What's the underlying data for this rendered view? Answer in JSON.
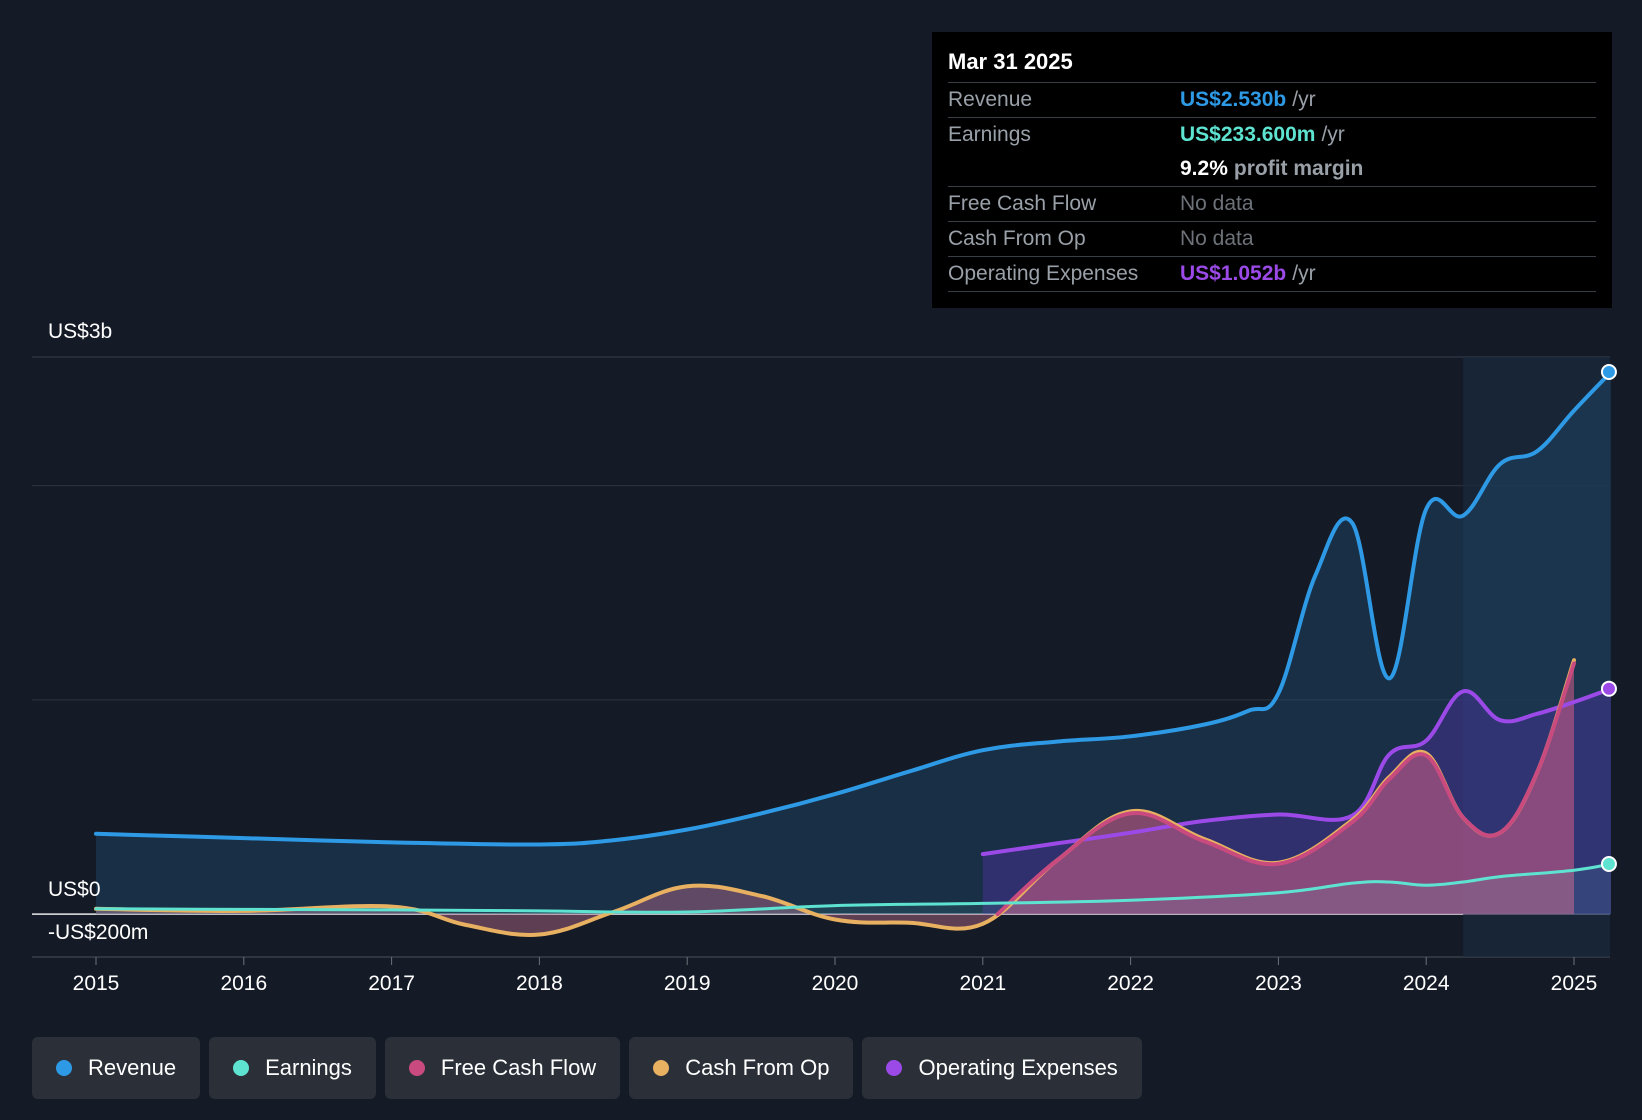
{
  "tooltip": {
    "date": "Mar 31 2025",
    "revenue_label": "Revenue",
    "revenue_value": "US$2.530b",
    "earnings_label": "Earnings",
    "earnings_value": "US$233.600m",
    "margin_value": "9.2%",
    "margin_label": "profit margin",
    "fcf_label": "Free Cash Flow",
    "fcf_value": "No data",
    "cfo_label": "Cash From Op",
    "cfo_value": "No data",
    "opex_label": "Operating Expenses",
    "opex_value": "US$1.052b",
    "per_year": "/yr"
  },
  "colors": {
    "revenue": "#2e9ae6",
    "earnings": "#5ee3d0",
    "fcf": "#c94a7e",
    "cfo": "#e8b061",
    "opex": "#9b4ae8",
    "background": "#151b26"
  },
  "legend": {
    "revenue": "Revenue",
    "earnings": "Earnings",
    "fcf": "Free Cash Flow",
    "cfo": "Cash From Op",
    "opex": "Operating Expenses"
  },
  "chart_data": {
    "type": "area",
    "title": "",
    "y_unit": "US$ millions",
    "ylim": [
      -200,
      2600
    ],
    "y_tick_labels": [
      {
        "value": 2600,
        "label": "US$3b"
      },
      {
        "value": 0,
        "label": "US$0"
      },
      {
        "value": -200,
        "label": "-US$200m"
      }
    ],
    "x_tick_labels": [
      "2015",
      "2016",
      "2017",
      "2018",
      "2019",
      "2020",
      "2021",
      "2022",
      "2023",
      "2024",
      "2025"
    ],
    "xlim": [
      2014.58,
      2025.25
    ],
    "highlight_range": [
      2024.25,
      2025.25
    ],
    "series": [
      {
        "name": "Revenue",
        "key": "revenue",
        "x": [
          2015,
          2016,
          2017,
          2018,
          2018.5,
          2019,
          2019.5,
          2020,
          2020.5,
          2021,
          2021.5,
          2022,
          2022.5,
          2022.8,
          2023,
          2023.25,
          2023.5,
          2023.75,
          2024,
          2024.25,
          2024.5,
          2024.75,
          2025,
          2025.25
        ],
        "y": [
          375,
          355,
          335,
          325,
          345,
          395,
          470,
          560,
          665,
          765,
          805,
          830,
          885,
          950,
          1030,
          1580,
          1825,
          1100,
          1890,
          1860,
          2100,
          2160,
          2350,
          2530
        ]
      },
      {
        "name": "Earnings",
        "key": "earnings",
        "x": [
          2015,
          2016,
          2017,
          2018,
          2019,
          2020,
          2021,
          2022,
          2023,
          2023.5,
          2023.75,
          2024,
          2024.25,
          2024.5,
          2025,
          2025.25
        ],
        "y": [
          25,
          22,
          20,
          15,
          10,
          40,
          50,
          65,
          100,
          145,
          150,
          135,
          150,
          175,
          205,
          234
        ]
      },
      {
        "name": "Free Cash Flow",
        "key": "fcf",
        "x": [
          2021.1,
          2021.5,
          2022,
          2022.5,
          2023,
          2023.5,
          2023.75,
          2024,
          2024.25,
          2024.5,
          2024.75,
          2025
        ],
        "y": [
          0,
          250,
          470,
          340,
          235,
          430,
          630,
          740,
          450,
          380,
          660,
          1170
        ]
      },
      {
        "name": "Cash From Op",
        "key": "cfo",
        "x": [
          2015,
          2016,
          2017,
          2017.5,
          2018,
          2018.5,
          2019,
          2019.5,
          2020,
          2020.5,
          2021,
          2021.5,
          2022,
          2022.5,
          2023,
          2023.5,
          2023.75,
          2024,
          2024.25,
          2024.5,
          2024.75,
          2025
        ],
        "y": [
          25,
          15,
          35,
          -50,
          -95,
          10,
          130,
          85,
          -25,
          -40,
          -45,
          250,
          480,
          350,
          240,
          440,
          640,
          750,
          450,
          380,
          660,
          1185
        ]
      },
      {
        "name": "Operating Expenses",
        "key": "opex",
        "x": [
          2021,
          2021.5,
          2022,
          2022.5,
          2023,
          2023.5,
          2023.75,
          2024,
          2024.25,
          2024.5,
          2024.75,
          2025,
          2025.25
        ],
        "y": [
          280,
          330,
          380,
          435,
          465,
          460,
          745,
          810,
          1040,
          905,
          935,
          990,
          1052
        ]
      }
    ]
  }
}
